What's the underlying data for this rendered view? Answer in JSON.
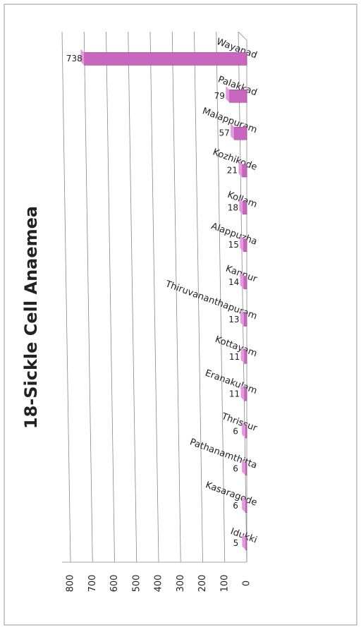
{
  "chart_data": {
    "type": "bar",
    "title": "18-Sickle Cell Anaemea",
    "categories": [
      "Idukki",
      "Kasaragode",
      "Pathanamthitta",
      "Thrissur",
      "Eranakulam",
      "Kottayam",
      "Thiruvananthapuram",
      "Kannur",
      "Alappuzha",
      "Kollam",
      "Kozhikode",
      "Malappuram",
      "Palakkad",
      "Wayanad"
    ],
    "values": [
      5,
      6,
      6,
      6,
      11,
      11,
      13,
      14,
      15,
      18,
      21,
      57,
      79,
      738
    ],
    "color": "#c866c0",
    "ylim": [
      0,
      800
    ],
    "yticks": [
      0,
      100,
      200,
      300,
      400,
      500,
      600,
      700,
      800
    ],
    "grid": true
  }
}
